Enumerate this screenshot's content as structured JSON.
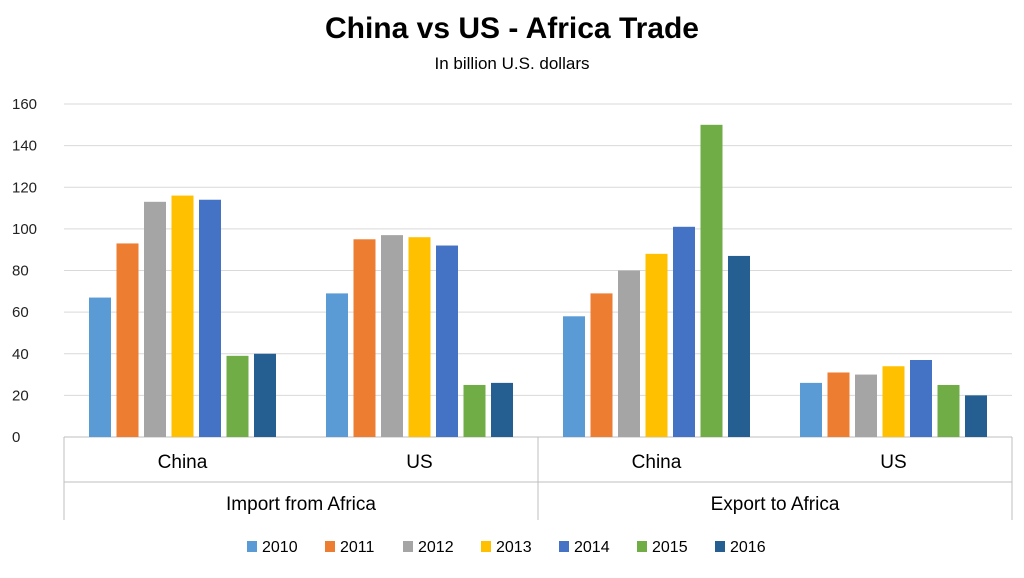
{
  "chart_data": {
    "type": "bar",
    "title": "China vs US - Africa Trade",
    "subtitle": "In billion U.S. dollars",
    "ylim": [
      0,
      160
    ],
    "yticks": [
      0,
      20,
      40,
      60,
      80,
      100,
      120,
      140,
      160
    ],
    "grid": true,
    "legend_position": "bottom",
    "groups": [
      {
        "label": "Import from Africa",
        "categories": [
          "China",
          "US"
        ]
      },
      {
        "label": "Export to Africa",
        "categories": [
          "China",
          "US"
        ]
      }
    ],
    "categories": [
      "China",
      "US",
      "China",
      "US"
    ],
    "series": [
      {
        "name": "2010",
        "color": "#5b9bd5",
        "values": [
          67,
          69,
          58,
          26
        ]
      },
      {
        "name": "2011",
        "color": "#ed7d31",
        "values": [
          93,
          95,
          69,
          31
        ]
      },
      {
        "name": "2012",
        "color": "#a5a5a5",
        "values": [
          113,
          97,
          80,
          30
        ]
      },
      {
        "name": "2013",
        "color": "#ffc000",
        "values": [
          116,
          96,
          88,
          34
        ]
      },
      {
        "name": "2014",
        "color": "#4472c4",
        "values": [
          114,
          92,
          101,
          37
        ]
      },
      {
        "name": "2015",
        "color": "#70ad47",
        "values": [
          39,
          25,
          150,
          25
        ]
      },
      {
        "name": "2016",
        "color": "#255e91",
        "values": [
          40,
          26,
          87,
          20
        ]
      }
    ]
  }
}
